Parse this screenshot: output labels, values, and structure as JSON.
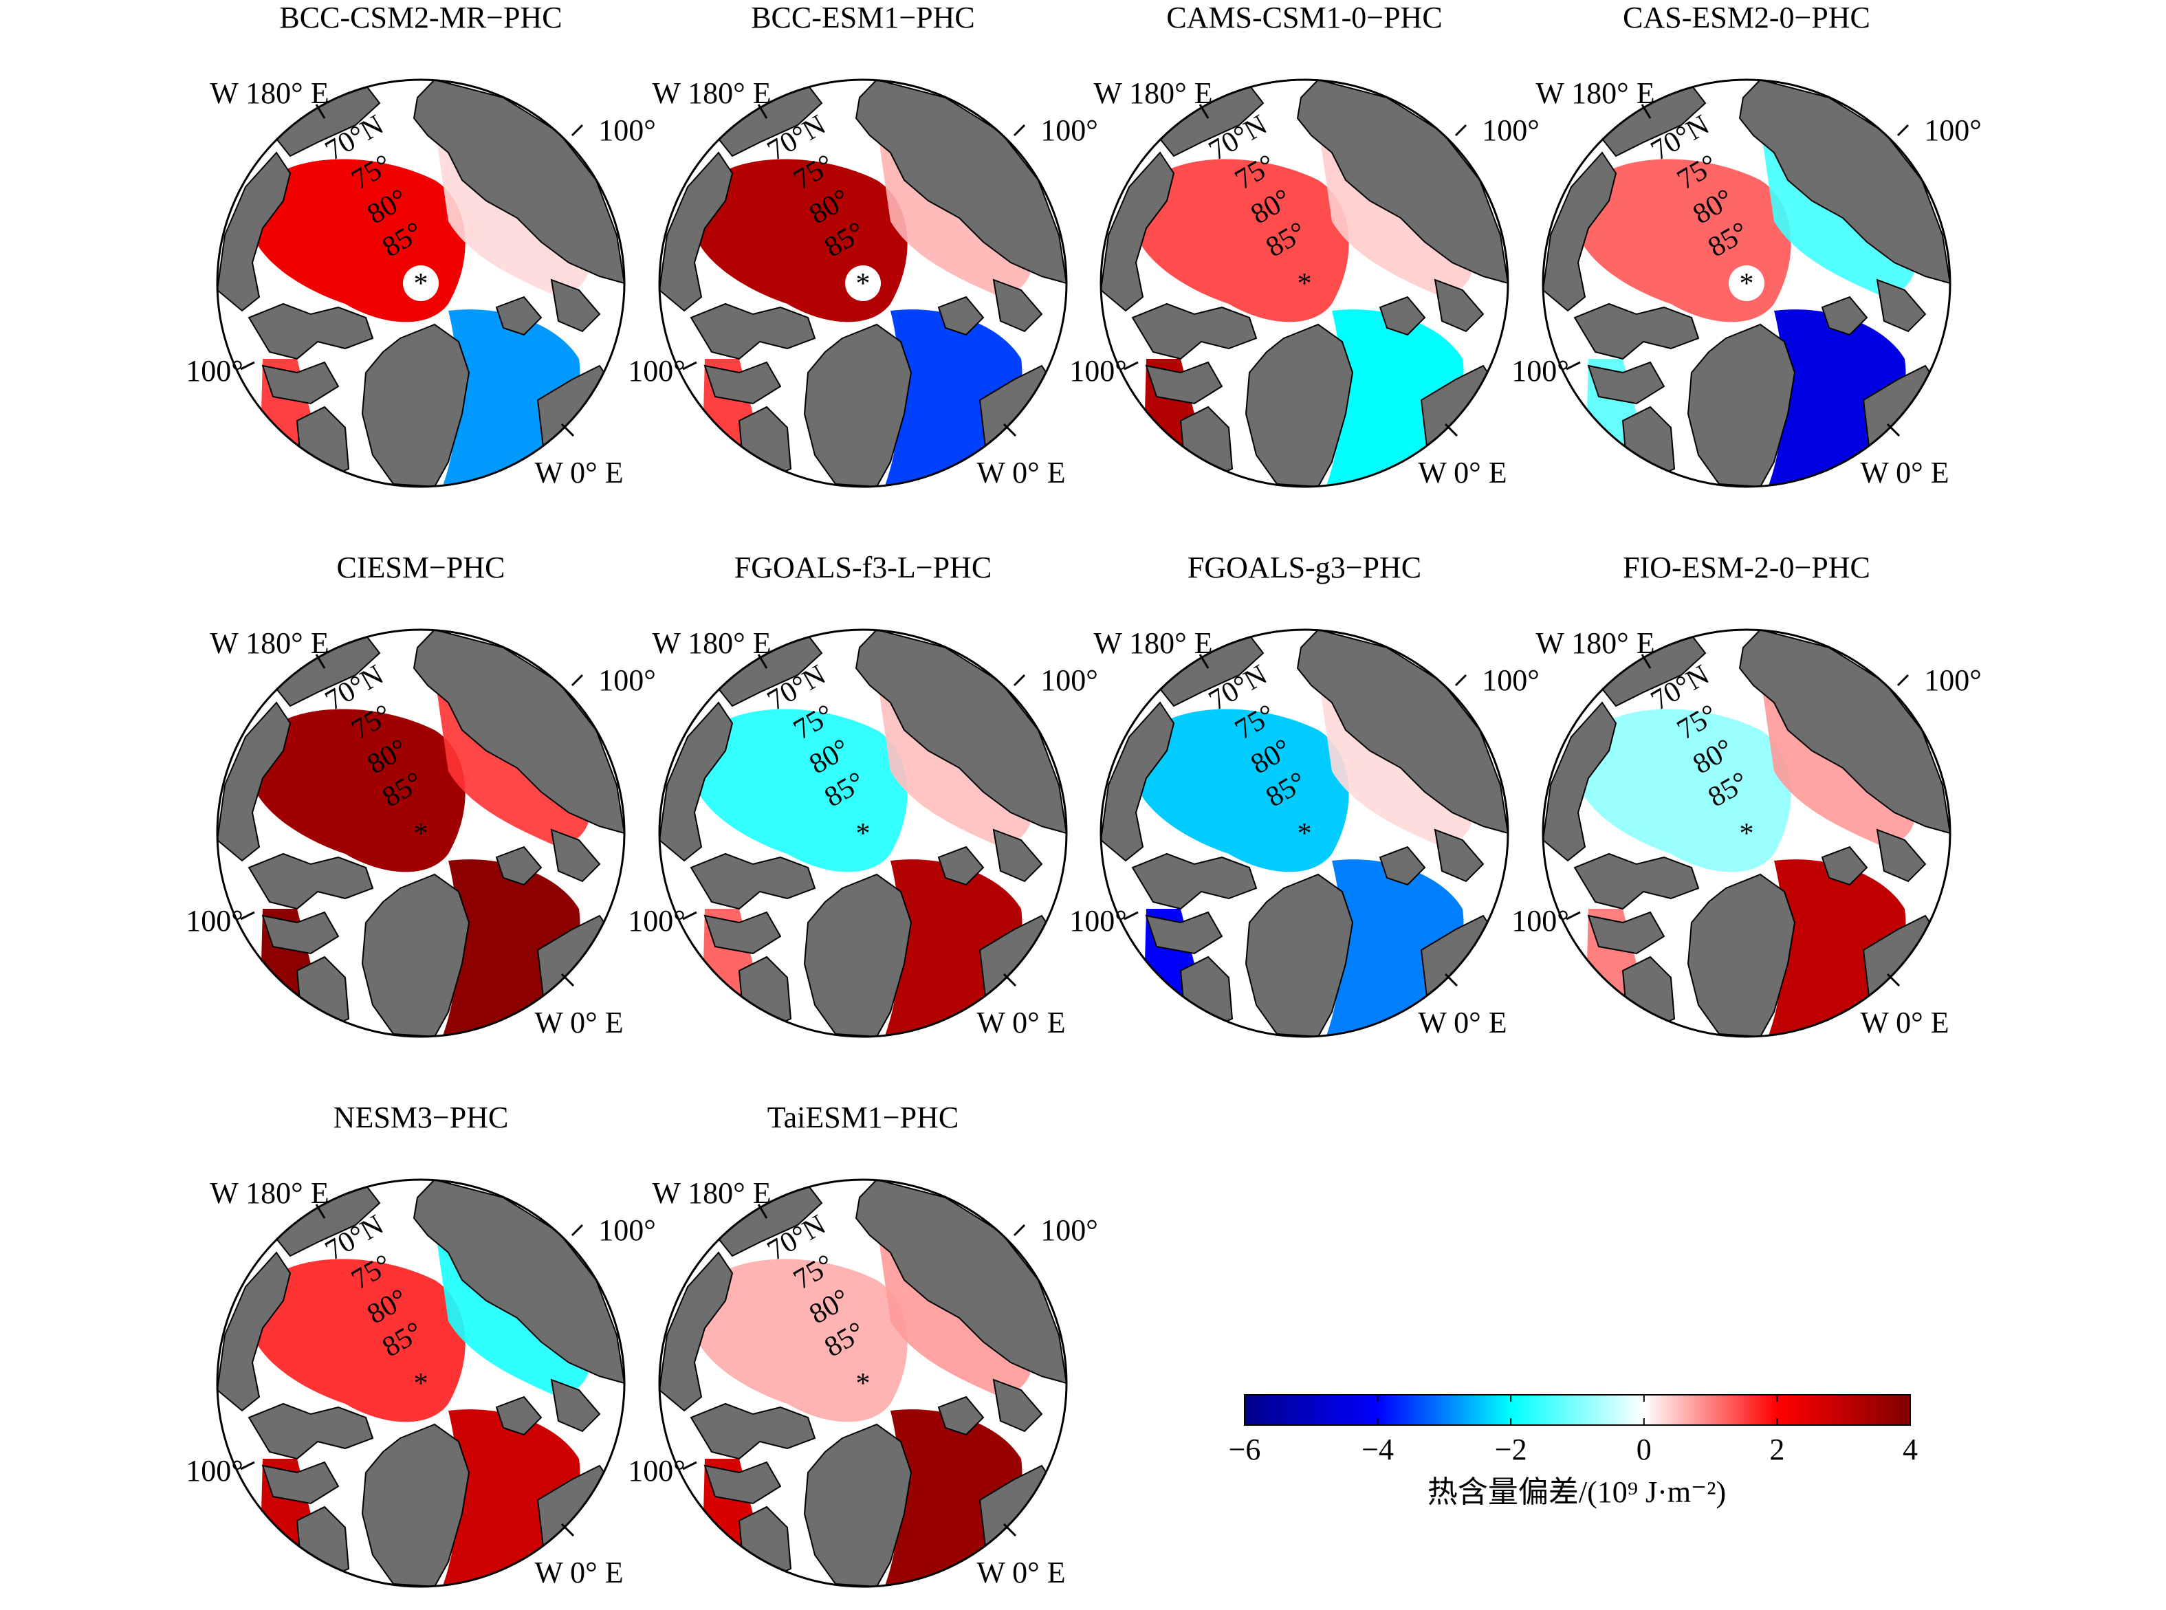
{
  "colors": {
    "land": "#6e6e6e",
    "ocean_neutral": "#ffffff",
    "deep_blue": "#00008b",
    "blue": "#0000ff",
    "cyan": "#00ffff",
    "white": "#ffffff",
    "red": "#ff0000",
    "dark_red": "#800000"
  },
  "map_labels": {
    "meridian_180": "W 180° E",
    "meridian_0": "W 0° E",
    "lon_100_right": "100°",
    "lon_100_left": "100°",
    "lat_70": "70°N",
    "lat_75": "75°",
    "lat_80": "80°",
    "lat_85": "85°",
    "pole_marker": "*"
  },
  "panels": [
    {
      "title": "BCC-CSM2-MR−PHC",
      "arctic_bias": 2.2,
      "eurasian_bias": 0.3,
      "atlantic_bias": -2.8,
      "baffin_bias": 1.5,
      "pole_hole": true
    },
    {
      "title": "BCC-ESM1−PHC",
      "arctic_bias": 3.2,
      "eurasian_bias": 0.6,
      "atlantic_bias": -3.5,
      "baffin_bias": 1.5,
      "pole_hole": true
    },
    {
      "title": "CAMS-CSM1-0−PHC",
      "arctic_bias": 1.4,
      "eurasian_bias": 0.4,
      "atlantic_bias": -2.0,
      "baffin_bias": 3.2,
      "pole_hole": false
    },
    {
      "title": "CAS-ESM2-0−PHC",
      "arctic_bias": 1.2,
      "eurasian_bias": -1.5,
      "atlantic_bias": -4.5,
      "baffin_bias": -1.2,
      "pole_hole": true
    },
    {
      "title": "CIESM−PHC",
      "arctic_bias": 3.5,
      "eurasian_bias": 1.6,
      "atlantic_bias": 3.8,
      "baffin_bias": 3.8,
      "pole_hole": false
    },
    {
      "title": "FGOALS-f3-L−PHC",
      "arctic_bias": -1.6,
      "eurasian_bias": 0.5,
      "atlantic_bias": 3.2,
      "baffin_bias": 1.2,
      "pole_hole": false
    },
    {
      "title": "FGOALS-g3−PHC",
      "arctic_bias": -2.4,
      "eurasian_bias": 0.3,
      "atlantic_bias": -3.0,
      "baffin_bias": -4.0,
      "pole_hole": false
    },
    {
      "title": "FIO-ESM-2-0−PHC",
      "arctic_bias": -0.8,
      "eurasian_bias": 0.8,
      "atlantic_bias": 3.0,
      "baffin_bias": 1.0,
      "pole_hole": false
    },
    {
      "title": "NESM3−PHC",
      "arctic_bias": 1.6,
      "eurasian_bias": -1.8,
      "atlantic_bias": 2.8,
      "baffin_bias": 2.8,
      "pole_hole": false
    },
    {
      "title": "TaiESM1−PHC",
      "arctic_bias": 0.6,
      "eurasian_bias": 0.8,
      "atlantic_bias": 3.6,
      "baffin_bias": 2.6,
      "pole_hole": false
    }
  ],
  "colorbar": {
    "ticks": [
      "−6",
      "−4",
      "−2",
      "0",
      "2",
      "4"
    ],
    "tick_values": [
      -6,
      -4,
      -2,
      0,
      2,
      4
    ],
    "range": [
      -6,
      4
    ],
    "title": "热含量偏差/(10⁹ J·m⁻²)"
  }
}
